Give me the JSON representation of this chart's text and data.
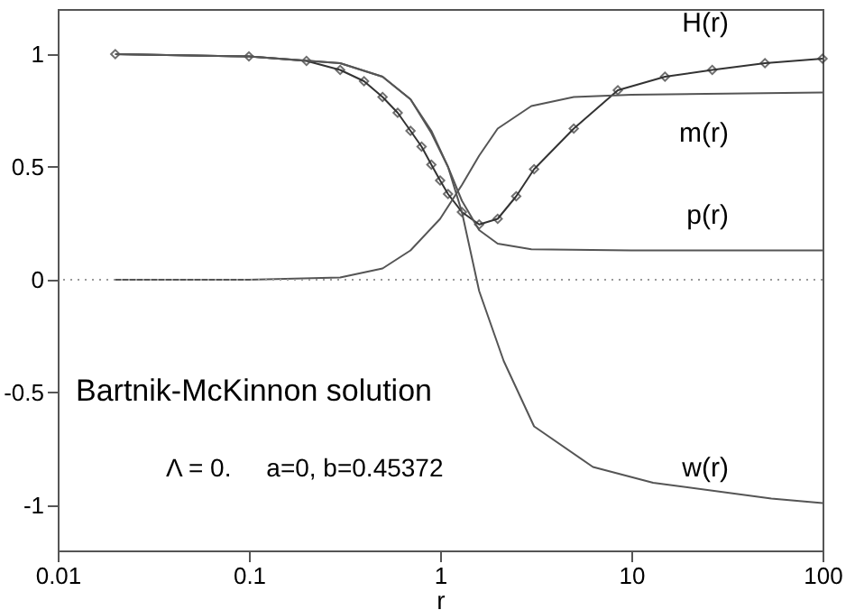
{
  "chart_data": {
    "type": "line",
    "xlabel": "r",
    "log": "x",
    "xlim": [
      0.01,
      100
    ],
    "xticks": [
      0.01,
      0.1,
      1,
      10,
      100
    ],
    "ylim": [
      -1.2,
      1.2
    ],
    "yticks": [
      -1,
      -0.5,
      0,
      0.5,
      1
    ],
    "grid": false,
    "annotations": [
      "Bartnik-McKinnon solution",
      "Λ = 0.     a=0, b=0.45372"
    ],
    "ref_lines": [
      {
        "axis": "y",
        "value": 0,
        "line_style": "dotted",
        "color": "#999999"
      }
    ],
    "series": [
      {
        "name": "H(r)",
        "color": "#333333",
        "marker": "diamond",
        "x": [
          0.02,
          0.1,
          0.2,
          0.3,
          0.4,
          0.5,
          0.6,
          0.7,
          0.8,
          0.9,
          1.0,
          1.1,
          1.3,
          1.6,
          2,
          2.5,
          3.1,
          5,
          8.5,
          15,
          26.5,
          50,
          100
        ],
        "values": [
          1.0,
          0.99,
          0.97,
          0.93,
          0.88,
          0.81,
          0.74,
          0.66,
          0.59,
          0.51,
          0.44,
          0.38,
          0.3,
          0.245,
          0.27,
          0.37,
          0.49,
          0.67,
          0.84,
          0.9,
          0.93,
          0.96,
          0.98
        ]
      },
      {
        "name": "m(r)",
        "color": "#555555",
        "marker": "none",
        "x": [
          0.02,
          0.1,
          0.3,
          0.5,
          0.7,
          1.0,
          1.3,
          1.6,
          2,
          3,
          5,
          10,
          100
        ],
        "values": [
          0,
          0,
          0.01,
          0.05,
          0.13,
          0.27,
          0.42,
          0.55,
          0.67,
          0.77,
          0.81,
          0.82,
          0.83
        ]
      },
      {
        "name": "p(r)",
        "color": "#555555",
        "marker": "none",
        "x": [
          0.02,
          0.1,
          0.3,
          0.5,
          0.7,
          0.9,
          1.1,
          1.3,
          1.6,
          2,
          3,
          10,
          100
        ],
        "values": [
          1.0,
          0.99,
          0.96,
          0.9,
          0.8,
          0.65,
          0.5,
          0.35,
          0.22,
          0.16,
          0.135,
          0.13,
          0.13
        ]
      },
      {
        "name": "w(r)",
        "color": "#555555",
        "marker": "none",
        "x": [
          0.02,
          0.1,
          0.3,
          0.5,
          0.7,
          0.9,
          1.1,
          1.3,
          1.6,
          2.15,
          3.1,
          6.3,
          13,
          54,
          100
        ],
        "values": [
          1.0,
          0.99,
          0.96,
          0.9,
          0.8,
          0.66,
          0.5,
          0.3,
          -0.05,
          -0.36,
          -0.65,
          -0.83,
          -0.9,
          -0.97,
          -0.99
        ]
      }
    ]
  }
}
